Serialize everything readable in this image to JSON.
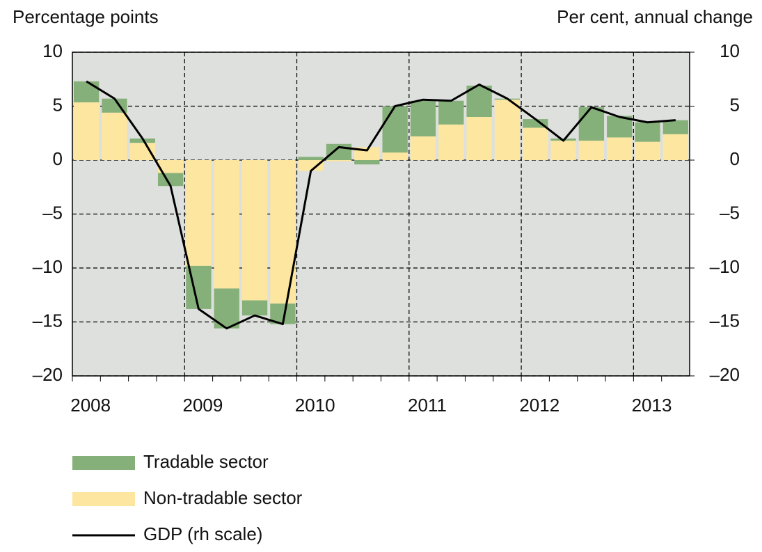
{
  "chart_data": {
    "type": "bar",
    "y_label": "Percentage points",
    "y2_label": "Per cent, annual change",
    "categories": [
      "2008",
      null,
      null,
      null,
      "2009",
      null,
      null,
      null,
      "2010",
      null,
      null,
      null,
      "2011",
      null,
      null,
      null,
      "2012",
      null,
      null,
      null,
      "2013",
      null
    ],
    "series": [
      {
        "name": "Tradable sector",
        "color": "#86b07a",
        "values": [
          1.95,
          1.3,
          0.4,
          -1.2,
          -4.0,
          -3.7,
          -1.4,
          -1.9,
          0.3,
          1.5,
          -0.4,
          4.3,
          3.3,
          2.2,
          2.9,
          0.1,
          0.8,
          0.2,
          3.1,
          2.0,
          1.8,
          1.3
        ]
      },
      {
        "name": "Non-tradable sector",
        "color": "#fde6a0",
        "values": [
          5.35,
          4.4,
          1.6,
          -1.2,
          -9.8,
          -11.9,
          -13.0,
          -13.3,
          -1.0,
          -0.1,
          1.2,
          0.7,
          2.2,
          3.3,
          4.0,
          5.6,
          3.0,
          1.8,
          1.8,
          2.1,
          1.7,
          2.4
        ]
      },
      {
        "name": "GDP (rh scale)",
        "type": "line",
        "axis": "y2",
        "color": "#000000",
        "values": [
          7.3,
          5.7,
          2.0,
          -2.4,
          -13.8,
          -15.6,
          -14.4,
          -15.2,
          -1.0,
          1.2,
          0.9,
          5.0,
          5.6,
          5.5,
          7.0,
          5.7,
          3.8,
          1.8,
          4.9,
          4.0,
          3.5,
          3.7
        ]
      }
    ],
    "ylim": [
      -20,
      10
    ],
    "yticks": [
      10,
      5,
      0,
      {
        "value": -5,
        "label": "–5"
      },
      {
        "value": -10,
        "label": "–10"
      },
      {
        "value": -15,
        "label": "–15"
      },
      {
        "value": -20,
        "label": "–20"
      }
    ],
    "y2lim": [
      -20,
      10
    ],
    "y2ticks": [
      10,
      5,
      0,
      {
        "value": -5,
        "label": "–5"
      },
      {
        "value": -10,
        "label": "–10"
      },
      {
        "value": -15,
        "label": "–15"
      },
      {
        "value": -20,
        "label": "–20"
      }
    ],
    "grid": true
  }
}
